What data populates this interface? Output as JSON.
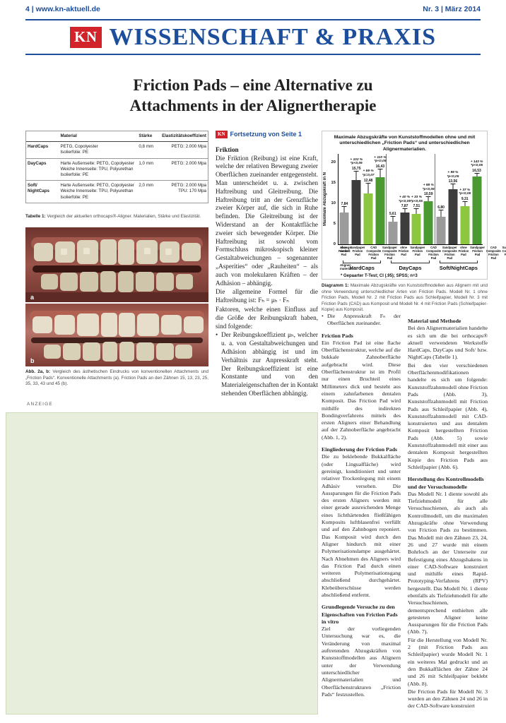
{
  "page": {
    "header_left": "4 | www.kn-aktuell.de",
    "header_right": "Nr. 3 | März 2014",
    "masthead_logo": "KN",
    "masthead_title": "WISSENSCHAFT & PRAXIS",
    "title_line1": "Friction Pads – eine Alternative zu",
    "title_line2": "Attachments in der Alignertherapie",
    "anzeige_label": "ANZEIGE"
  },
  "table": {
    "headers": {
      "name": "",
      "material": "Material",
      "staerke": "Stärke",
      "elast": "Elastizitätskoeffizient"
    },
    "rows": [
      {
        "name": "HardCaps",
        "material": [
          "PETG, Copolyester",
          "Isolierfolie: PE"
        ],
        "staerke": "0,8 mm",
        "elast": [
          "PETG: 2.000 Mpa"
        ]
      },
      {
        "name": "DayCaps",
        "material": [
          "Harte Außenseite: PETG, Copolyester",
          "Weiche Innenseite: TPU, Polyurethan",
          "Isolierfolie: PE"
        ],
        "staerke": "1,0 mm",
        "elast": [
          "PETG: 2.000 Mpa"
        ]
      },
      {
        "name": "Soft/\nNightCaps",
        "material": [
          "Harte Außenseite: PETG, Copolyester",
          "Weiche Innenseite: TPU, Polyurethan",
          "Isolierfolie: PE"
        ],
        "staerke": "2,0 mm",
        "elast": [
          "PETG: 2.000 Mpa",
          "TPU:  170 Mpa"
        ]
      }
    ],
    "caption_label": "Tabelle 1:",
    "caption_text": " Vergleich der aktuellen orthocaps®-Aligner. Materialien, Stärke und Elastizität."
  },
  "photos": {
    "label_a": "a",
    "label_b": "b",
    "caption_label": "Abb. 2a, b:",
    "caption_text": " Vergleich des ästhetischen Eindrucks von konventionellen Attachments und „Friction Pads“. Konventionelle Attachments (a). Friction Pads an den Zähnen 15, 13, 23, 25, 35, 33, 43 und 45 (b)."
  },
  "continuation": {
    "logo": "KN",
    "label": "Fortsetzung von Seite 1"
  },
  "columns": {
    "col2": [
      {
        "type": "heading",
        "text": "Friktion"
      },
      {
        "type": "para",
        "text": "Die Friktion (Reibung) ist eine Kraft, welche der relativen Bewegung zweier Oberflächen zueinander entgegensteht. Man unterscheidet u. a. zwischen Haftreibung und Gleitreibung. Die Haftreibung tritt an der Grenzfläche zweier Körper auf, die sich in Ruhe befinden. Die Gleitreibung ist der Widerstand an der Kontaktfläche zweier sich bewegender Körper. Die Haftreibung ist sowohl vom Formschluss mikroskopisch kleiner Gestaltabweichungen – sogenannter „Asperities“ oder „Rauheiten“ – als auch von molekularen Kräften – der Adhäsion – abhängig."
      },
      {
        "type": "para",
        "text": "Die allgemeine Formel für die Haftreibung ist: Fₕ = μₕ · Fₙ"
      },
      {
        "type": "para",
        "text": "Faktoren, welche einen Einfluss auf die Größe der Reibungskraft haben, sind folgende:"
      },
      {
        "type": "bullet",
        "text": "Der Reibungskoeffizient μₕ, welcher u. a. von Gestaltabweichungen und Adhäsion abhängig ist und im Verhältnis zur Anpresskraft steht. Der Reibungskoeffizient ist eine Konstante und von den Materialeigenschaften der in Kontakt stehenden Oberflächen abhängig."
      }
    ],
    "col3": [
      {
        "type": "bullet",
        "text": "Die Anpresskraft Fₙ der Oberflächen zueinander."
      },
      {
        "type": "heading",
        "text": "Friction Pads"
      },
      {
        "type": "para",
        "text": "Ein Friction Pad ist eine flache Oberflächenstruktur, welche auf die bukkale Zahnoberfläche aufgebracht wird. Diese Oberflächenstruktur ist im Profil nur einen Bruchteil eines Millimeters dick und besteht aus einem zahnfarbenen dentalen Komposit. Das Friction Pad wird mithilfe des indirekten Bondingverfahrens mittels des ersten Aligners einer Behandlung auf der Zahnoberfläche angebracht (Abb. 1, 2)."
      },
      {
        "type": "heading",
        "text": "Eingliederung der Friction Pads"
      },
      {
        "type": "para",
        "text": "Die zu beklebende Bukkalfläche (oder Lingualfläche) wird gereinigt, konditioniert und unter relativer Trockenlegung mit einem Adhäsiv versehen. Die Aussparungen für die Friction Pads des ersten Aligners werden mit einer gerade ausreichenden Menge eines lichthärtenden fließfähigen Komposits luftblasenfrei verfüllt und auf den Zahnbogen reponiert. Das Komposit wird durch den Aligner hindurch mit einer Polymerisationslampe ausgehärtet. Nach Abnehmen des Aligners wird das Friction Pad durch einen weiteren Polymerisationsgang abschließend durchgehärtet. Klebeüberschüsse werden abschließend entfernt."
      },
      {
        "type": "heading",
        "text": "Grundlegende Versuche zu den Eigenschaften von Friction Pads in vitro"
      },
      {
        "type": "para",
        "text": "Ziel der vorliegenden Untersuchung war es, die Veränderung von maximal auftretenden Abzugskräften von Kunststoffmodellen aus Alignern unter der Verwendung unterschiedlicher Alignermaterialien und Oberflächenstrukturen „Friction Pads“ festzustellen."
      }
    ],
    "col4": [
      {
        "type": "heading",
        "text": "Material und Methode"
      },
      {
        "type": "para",
        "text": "Bei den Alignermaterialien handelte es sich um die bei orthocaps® aktuell verwendeten Werkstoffe HardCaps, DayCaps und Soft/ bzw. NightCaps (Tabelle 1)."
      },
      {
        "type": "para",
        "text": "Bei den vier verschiedenen Oberflächenmodifikationen handelte es sich um folgende: Kunststoffzahnmodell ohne Friction Pads (Abb. 3), Kunststoffzahnmodell mit Friction Pads aus Schleifpapier (Abb. 4), Kunststoffzahnmodell mit CAD-konstruierten und aus dentalem Komposit hergestellten Friction Pads (Abb. 5) sowie Kunststoffzahnmodell mit einer aus dentalem Komposit hergestellten Kopie des Friction Pads aus Schleifpapier (Abb. 6)."
      },
      {
        "type": "heading",
        "text": "Herstellung des Kontrollmodells und der Versuchsmodelle"
      },
      {
        "type": "para",
        "text": "Das Modell Nr. 1 diente sowohl als Tiefziehmodell für alle Versuchsschienen, als auch als Kontrollmodell, um die maximalen Abzugskräfte ohne Verwendung von Friction Pads zu bestimmen. Das Modell mit den Zähnen 23, 24, 26 und 27 wurde mit einem Bohrloch an der Unterseite zur Befestigung eines Abzugshakens in einer CAD-Software konstruiert und mithilfe eines Rapid-Prototyping-Verfahrens (RPV) hergestellt. Das Modell Nr. 1 diente ebenfalls als Tiefziehmodell für alle Versuchsschienen, dementsprechend enthielten alle getesteten Aligner keine Aussparungen für die Friction Pads (Abb. 7)."
      },
      {
        "type": "para",
        "text": "Für die Herstellung von Modell Nr. 2 (mit Friction Pads aus Schleifpapier) wurde Modell Nr. 1 ein weiteres Mal gedruckt und an den Bukkalflächen der Zähne 24 und 26 mit Schleifpapier beklebt (Abb. 8)."
      },
      {
        "type": "para",
        "text": "Die Friction Pads für Modell Nr. 3 wurden an den Zähnen 24 und 26 in der CAD-Software konstruiert"
      }
    ]
  },
  "chart_caption": {
    "label": "Diagramm 1:",
    "text": " Maximale Abzugskräfte von Kunststoffmodellen aus Alignern mit und ohne Verwendung unterschiedlicher Arten von Friction Pads. Modell Nr. 1 ohne Friction Pads, Modell Nr. 2 mit Friction Pads aus Schleifpapier, Modell Nr. 3 mit Friction Pads (CAD) aus Komposit und Modell Nr. 4 mit Friction Pads (Schleifpapier-Kopie) aus Komposit."
  },
  "chart_data": {
    "type": "bar",
    "title": "Maximale Abzugskräfte von Kunststoffmodellen ohne und mit unterschiedlichen „Friction Pads“ und unterschiedlichen Alignermaterialien.",
    "ylabel": "Maximale Abzugskraft in N",
    "ylim": [
      0,
      20
    ],
    "yticks": [
      0,
      5,
      10,
      15,
      20
    ],
    "grid": false,
    "row_label_model": "Abzugs-\nmodell:",
    "row_label_material": "Aligner-\nmaterial:",
    "bar_labels": [
      "ohne Friction Pad",
      "Sandpaper Friction Pad",
      "CAD Composite Friction Pad",
      "Sandpaper Composite Friction Pad"
    ],
    "bar_colors": [
      "#9b9b9b",
      "#3d3d3d",
      "#8dc63f",
      "#4a9a31"
    ],
    "groups": [
      {
        "name": "HardCaps",
        "values": [
          7.84,
          15.75,
          12.48,
          16.43
        ],
        "value_labels": [
          "7,84",
          "15,75",
          "12,48",
          "16,43"
        ],
        "annotations": [
          "",
          "+ 102 %\n*p<0,05",
          "+ 59 %\n*p=0,07",
          "+ 110 %\n*p<0,05"
        ],
        "errors": [
          1.2,
          1.9,
          2.3,
          1.7
        ]
      },
      {
        "name": "DayCaps",
        "values": [
          5.61,
          7.87,
          7.51,
          10.59
        ],
        "value_labels": [
          "5,61",
          "7,87",
          "7,51",
          "10,59"
        ],
        "annotations": [
          "",
          "+ 40 %\n*p<0,05",
          "+ 33 %\n*p<0,05",
          "+ 88 %\n*p<0,05"
        ],
        "errors": [
          0.9,
          0.6,
          0.9,
          0.8
        ]
      },
      {
        "name": "Soft/NightCaps",
        "values": [
          6.8,
          13.56,
          9.31,
          16.53
        ],
        "value_labels": [
          "6,80",
          "13,56",
          "9,31",
          "16,53"
        ],
        "annotations": [
          "",
          "+ 99 %\n*p<0,05",
          "+ 37 %\n*p<0,05",
          "+ 143 %\n*p<0,05"
        ],
        "errors": [
          1.4,
          0.9,
          0.9,
          0.6
        ]
      }
    ],
    "footnote": "* Gepaarter T-Test; CI (.95); SPSS; n=3",
    "legend_position": "none"
  },
  "colors": {
    "accent_blue": "#1c4e9c",
    "brand_red": "#d2232a",
    "ad_green": "#e7efdc"
  }
}
